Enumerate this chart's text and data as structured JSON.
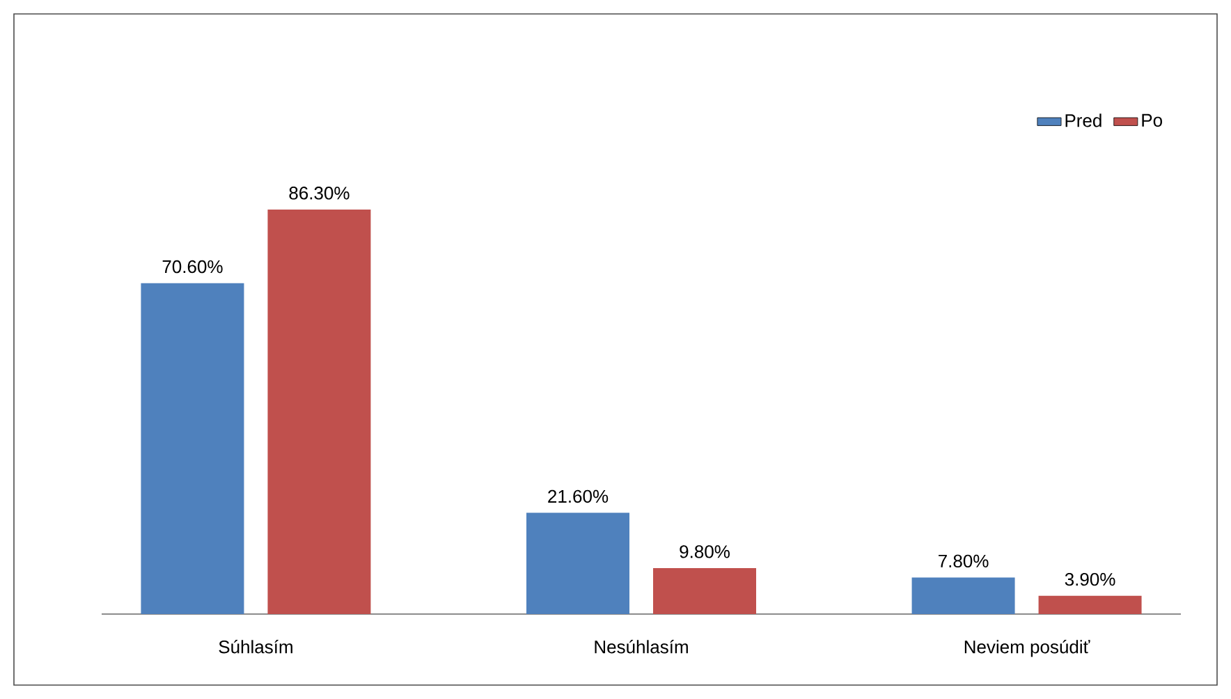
{
  "chart_data": {
    "type": "bar",
    "categories": [
      "Súhlasím",
      "Nesúhlasím",
      "Neviem posúdiť"
    ],
    "series": [
      {
        "name": "Pred",
        "color": "#4f81bd",
        "values": [
          70.6,
          21.6,
          7.8
        ],
        "value_labels": [
          "70.60%",
          "21.60%",
          "7.80%"
        ]
      },
      {
        "name": "Po",
        "color": "#c0504d",
        "values": [
          86.3,
          9.8,
          3.9
        ],
        "value_labels": [
          "86.30%",
          "9.80%",
          "3.90%"
        ]
      }
    ],
    "legend": "top right"
  }
}
